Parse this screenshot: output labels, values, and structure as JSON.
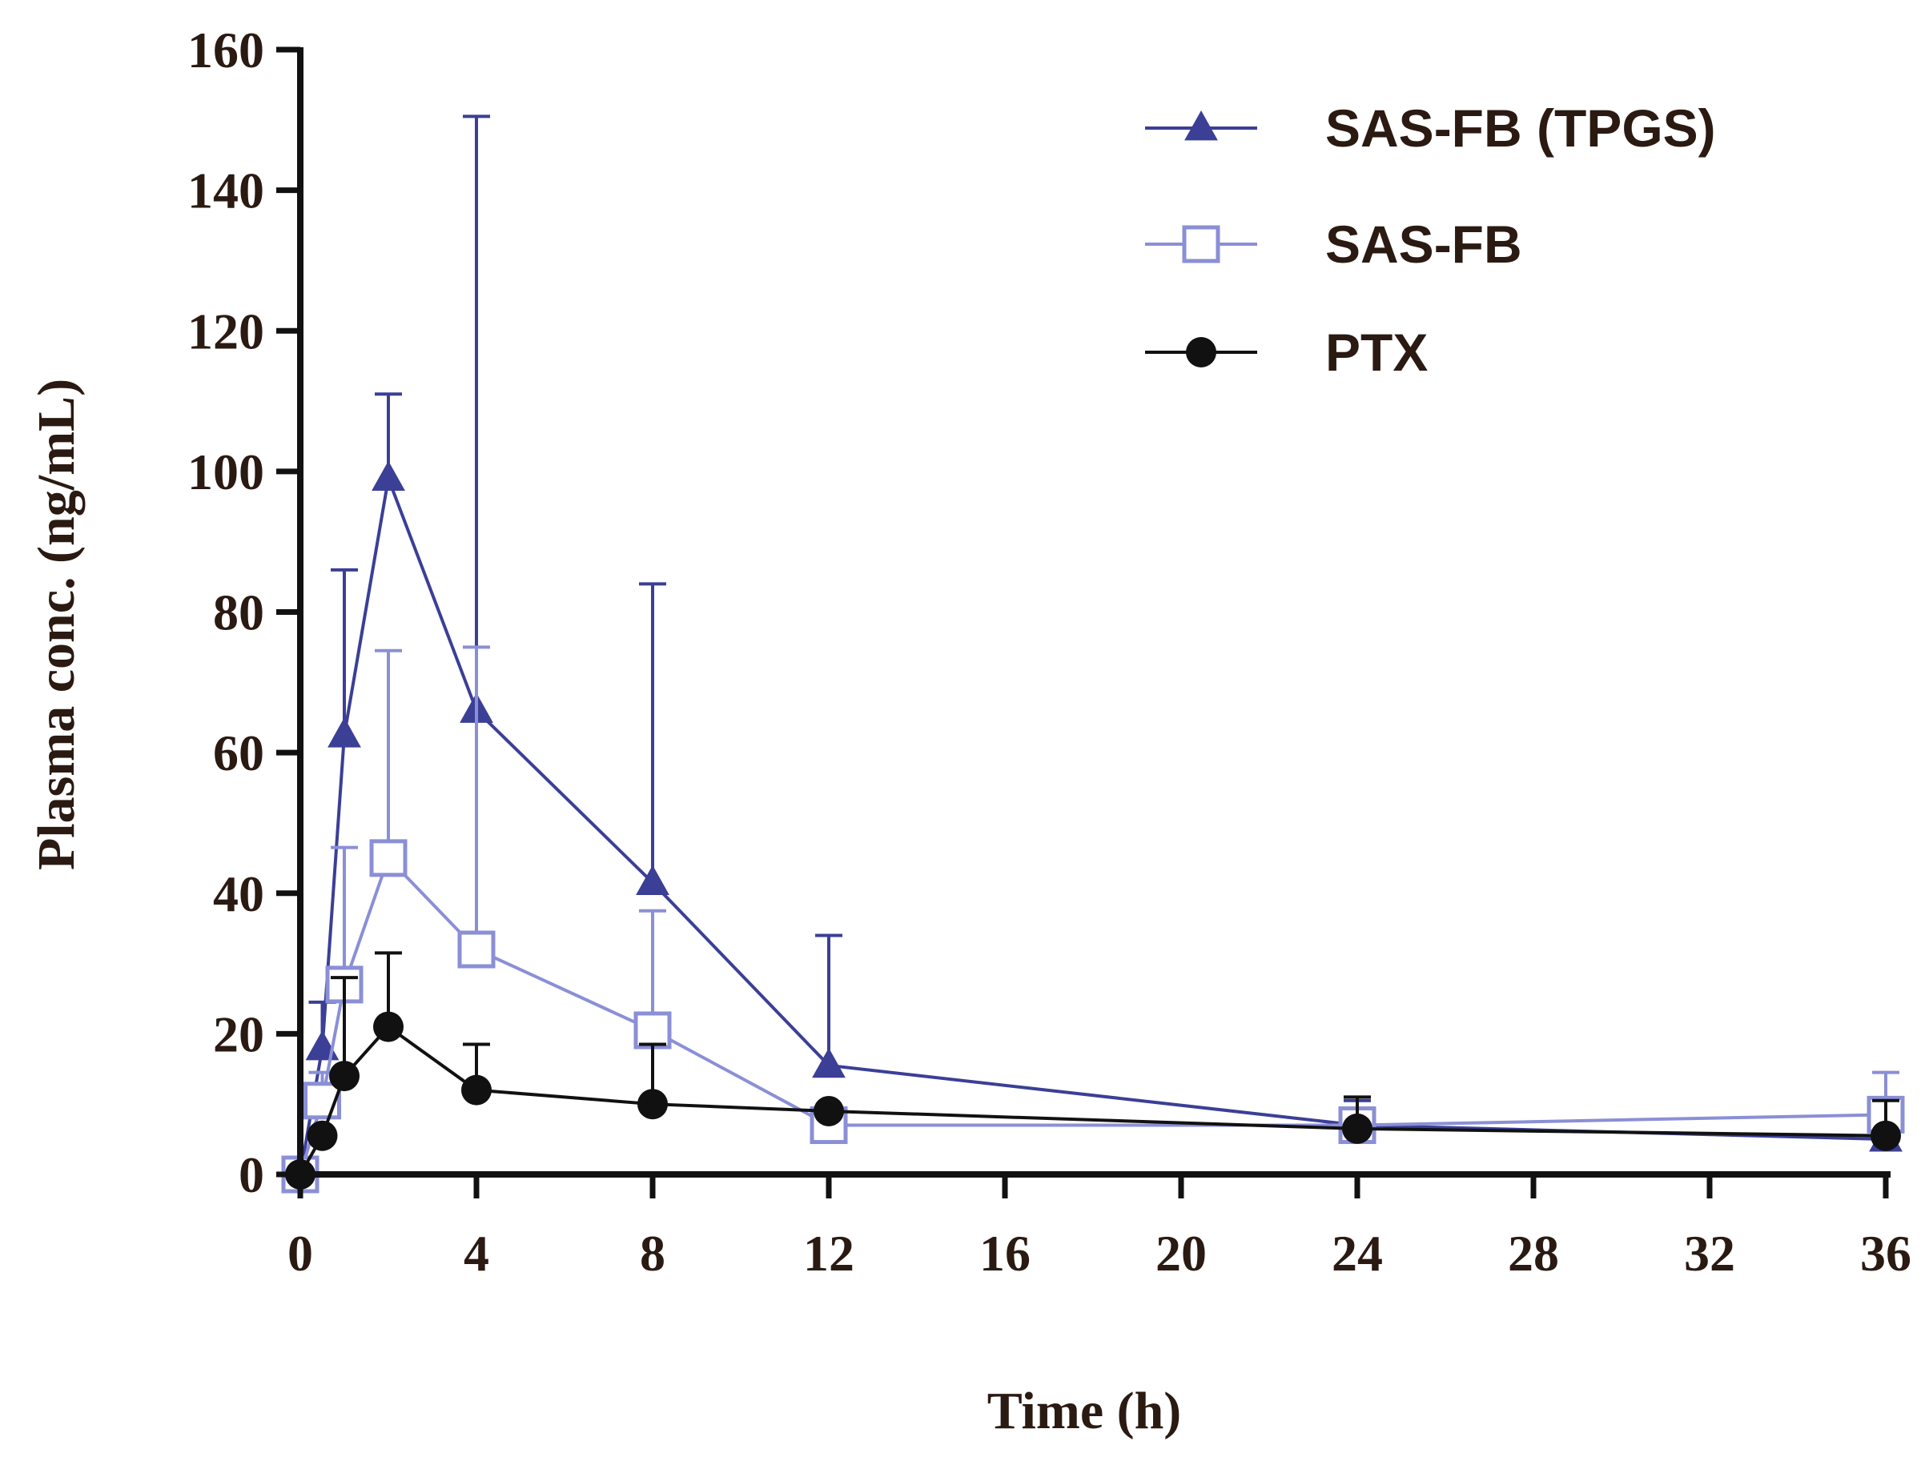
{
  "chart_data": {
    "type": "line",
    "title": "",
    "xlabel": "Time (h)",
    "ylabel": "Plasma conc. (ng/mL)",
    "xlim": [
      0,
      36
    ],
    "ylim": [
      0,
      160
    ],
    "xticks": [
      0,
      4,
      8,
      12,
      16,
      20,
      24,
      28,
      32,
      36
    ],
    "yticks": [
      0,
      20,
      40,
      60,
      80,
      100,
      120,
      140,
      160
    ],
    "grid": false,
    "legend_position": "top-right",
    "series": [
      {
        "name": "SAS-FB (TPGS)",
        "color": "#3b3f96",
        "marker": "triangle-filled",
        "x": [
          0,
          0.5,
          1,
          2,
          4,
          8,
          12,
          24,
          36
        ],
        "y": [
          0,
          18,
          62.5,
          99,
          66,
          41.5,
          15.5,
          7,
          5
        ],
        "error": [
          0,
          6.5,
          23.5,
          12,
          84.5,
          42.5,
          18.5,
          3.5,
          2
        ]
      },
      {
        "name": "SAS-FB",
        "color": "#8a8fd6",
        "marker": "square-open",
        "x": [
          0,
          0.5,
          1,
          2,
          4,
          8,
          12,
          24,
          36
        ],
        "y": [
          0,
          10.5,
          27,
          45,
          32,
          20.5,
          7,
          7,
          8.5
        ],
        "error": [
          0,
          4,
          19.5,
          29.5,
          43,
          17,
          0,
          0,
          6
        ]
      },
      {
        "name": "PTX",
        "color": "#111111",
        "marker": "circle-filled",
        "x": [
          0,
          0.5,
          1,
          2,
          4,
          8,
          12,
          24,
          36
        ],
        "y": [
          0,
          5.5,
          14,
          21,
          12,
          10,
          9,
          6.5,
          5.5
        ],
        "error": [
          0,
          0,
          14,
          10.5,
          6.5,
          8.5,
          0,
          4.5,
          5
        ]
      }
    ]
  }
}
